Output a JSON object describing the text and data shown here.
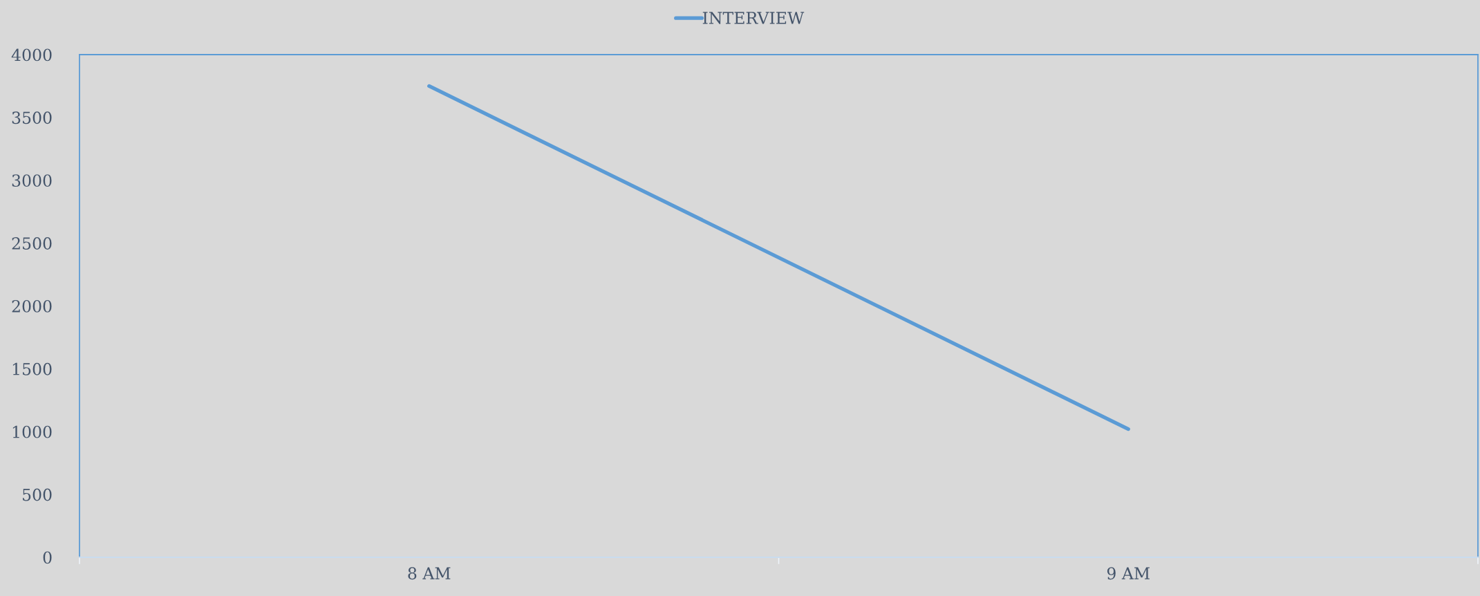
{
  "chart_data": {
    "type": "line",
    "categories": [
      "8 AM",
      "9 AM"
    ],
    "series": [
      {
        "name": "INTERVIEW",
        "color": "#5b9bd5",
        "values": [
          3750,
          1020
        ]
      }
    ],
    "ylim": [
      0,
      4000
    ],
    "yticks": [
      0,
      500,
      1000,
      1500,
      2000,
      2500,
      3000,
      3500,
      4000
    ],
    "legend": "top",
    "grid": false,
    "marker": "none",
    "line_style": "solid"
  }
}
